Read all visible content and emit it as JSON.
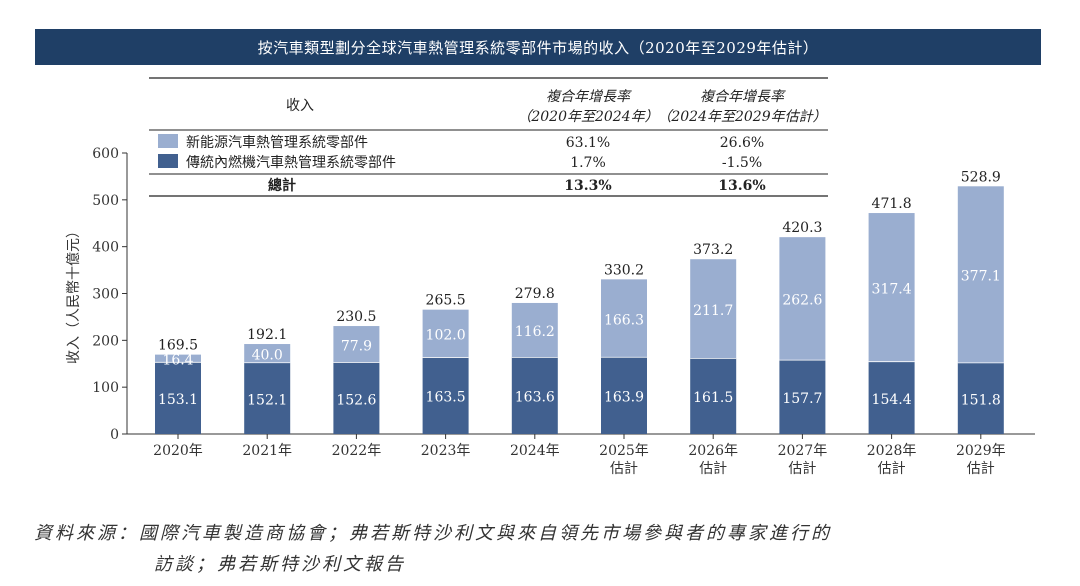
{
  "title": "按汽車類型劃分全球汽車熱管理系統零部件市場的收入（2020年至2029年估計）",
  "chart_data": {
    "type": "bar",
    "stacked": true,
    "title": "按汽車類型劃分全球汽車熱管理系統零部件市場的收入（2020年至2029年估計）",
    "ylabel": "收入（人民幣十億元）",
    "ylim": [
      0,
      600
    ],
    "yticks": [
      0,
      100,
      200,
      300,
      400,
      500,
      600
    ],
    "categories": [
      [
        "2020年"
      ],
      [
        "2021年"
      ],
      [
        "2022年"
      ],
      [
        "2023年"
      ],
      [
        "2024年"
      ],
      [
        "2025年",
        "估計"
      ],
      [
        "2026年",
        "估計"
      ],
      [
        "2027年",
        "估計"
      ],
      [
        "2028年",
        "估計"
      ],
      [
        "2029年",
        "估計"
      ]
    ],
    "series": [
      {
        "name": "傳統內燃機汽車熱管理系統零部件",
        "color": "#41608f",
        "values": [
          153.1,
          152.1,
          152.6,
          163.5,
          163.6,
          163.9,
          161.5,
          157.7,
          154.4,
          151.8
        ]
      },
      {
        "name": "新能源汽車熱管理系統零部件",
        "color": "#9aaed0",
        "values": [
          16.4,
          40.0,
          77.9,
          102.0,
          116.2,
          166.3,
          211.7,
          262.6,
          317.4,
          377.1
        ]
      }
    ],
    "totals": [
      169.5,
      192.1,
      230.5,
      265.5,
      279.8,
      330.2,
      373.2,
      420.3,
      471.8,
      528.9
    ],
    "value_labels_ice": [
      "153.1",
      "152.1",
      "152.6",
      "163.5",
      "163.6",
      "163.9",
      "161.5",
      "157.7",
      "154.4",
      "151.8"
    ],
    "value_labels_nev": [
      "16.4",
      "40.0",
      "77.9",
      "102.0",
      "116.2",
      "166.3",
      "211.7",
      "262.6",
      "317.4",
      "377.1"
    ],
    "value_labels_total": [
      "169.5",
      "192.1",
      "230.5",
      "265.5",
      "279.8",
      "330.2",
      "373.2",
      "420.3",
      "471.8",
      "528.9"
    ],
    "grid": false,
    "legend": "top (table)"
  },
  "legend_table": {
    "header_revenue": "收入",
    "header_cagr1": [
      "複合年增長率",
      "（2020年至2024年）"
    ],
    "header_cagr2": [
      "複合年增長率",
      "（2024年至2029年估計）"
    ],
    "rows": [
      {
        "label": "新能源汽車熱管理系統零部件",
        "cagr1": "63.1%",
        "cagr2": "26.6%",
        "color": "#9aaed0"
      },
      {
        "label": "傳統內燃機汽車熱管理系統零部件",
        "cagr1": "1.7%",
        "cagr2": "-1.5%",
        "color": "#41608f"
      }
    ],
    "total": {
      "label": "總計",
      "cagr1": "13.3%",
      "cagr2": "13.6%"
    }
  },
  "source_line1": "資料來源：國際汽車製造商協會；弗若斯特沙利文與來自領先市場參與者的專家進行的",
  "source_line2": "訪談；弗若斯特沙利文報告"
}
